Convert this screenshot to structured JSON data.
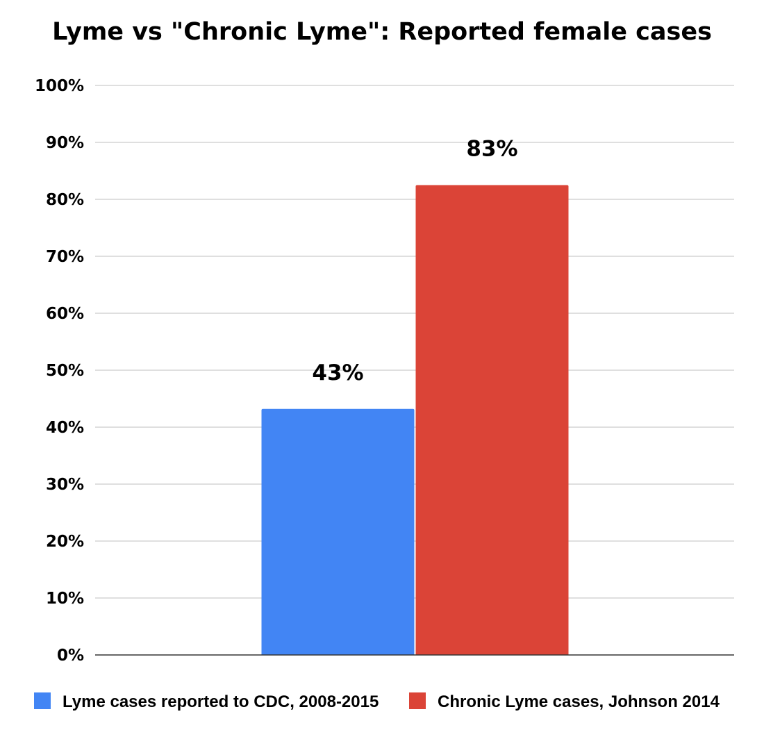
{
  "chart_data": {
    "type": "bar",
    "title": "Lyme vs \"Chronic Lyme\": Reported female cases",
    "xlabel": "",
    "ylabel": "",
    "ylim": [
      0,
      100
    ],
    "y_ticks": [
      "0%",
      "10%",
      "20%",
      "30%",
      "40%",
      "50%",
      "60%",
      "70%",
      "80%",
      "90%",
      "100%"
    ],
    "grid": true,
    "legend_position": "bottom",
    "series": [
      {
        "name": "Lyme cases reported to CDC, 2008-2015",
        "values": [
          43.2
        ],
        "label": "43%",
        "color": "#4285f4"
      },
      {
        "name": "Chronic Lyme cases, Johnson 2014",
        "values": [
          82.5
        ],
        "label": "83%",
        "color": "#db4437"
      }
    ]
  }
}
